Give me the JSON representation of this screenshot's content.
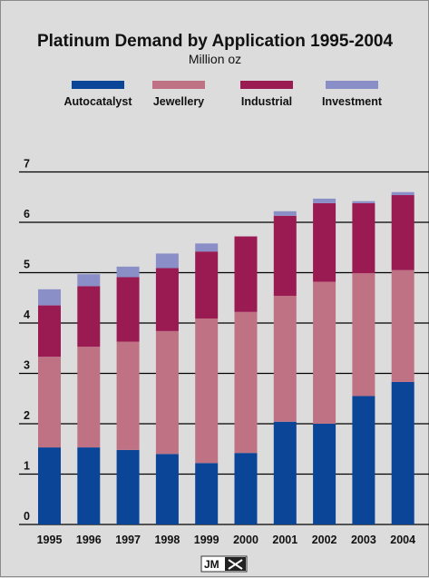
{
  "chart_data": {
    "type": "bar",
    "stacked": true,
    "title": "Platinum Demand by Application 1995-2004",
    "subtitle": "Million oz",
    "categories": [
      "1995",
      "1996",
      "1997",
      "1998",
      "1999",
      "2000",
      "2001",
      "2002",
      "2003",
      "2004"
    ],
    "series": [
      {
        "name": "Autocatalyst",
        "color": "#0a4597",
        "values": [
          1.53,
          1.53,
          1.48,
          1.4,
          1.22,
          1.42,
          2.04,
          2.0,
          2.55,
          2.83
        ]
      },
      {
        "name": "Jewellery",
        "color": "#c07285",
        "values": [
          1.8,
          2.0,
          2.15,
          2.44,
          2.87,
          2.8,
          2.5,
          2.82,
          2.44,
          2.22
        ]
      },
      {
        "name": "Industrial",
        "color": "#9a1a52",
        "values": [
          1.02,
          1.2,
          1.28,
          1.25,
          1.33,
          1.5,
          1.59,
          1.56,
          1.39,
          1.49
        ]
      },
      {
        "name": "Investment",
        "color": "#8b8fc7",
        "values": [
          0.32,
          0.24,
          0.21,
          0.29,
          0.16,
          0.0,
          0.09,
          0.09,
          0.04,
          0.06
        ]
      }
    ],
    "ylim": [
      0,
      7
    ],
    "yticks": [
      0,
      1,
      2,
      3,
      4,
      5,
      6,
      7
    ],
    "grid": true,
    "legend_position": "top"
  },
  "logo": {
    "text": "JM"
  }
}
